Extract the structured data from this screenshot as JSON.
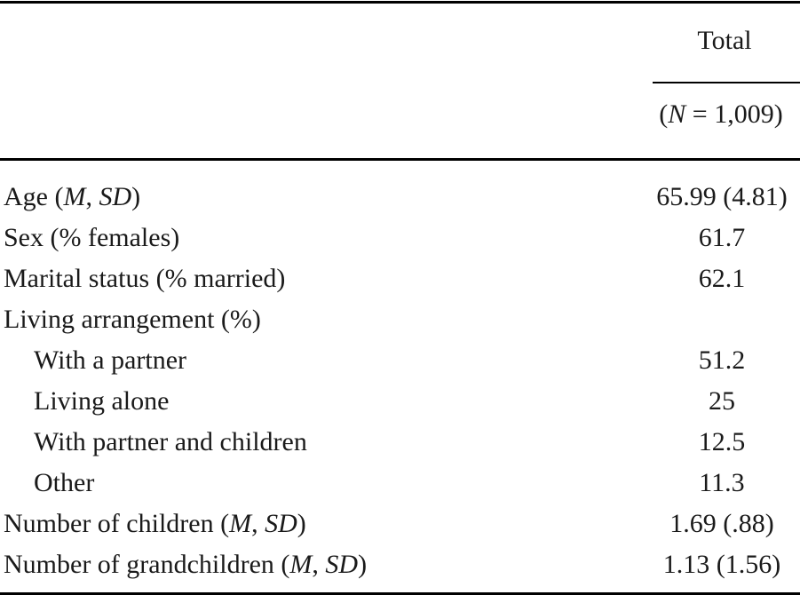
{
  "table": {
    "header": {
      "column_label": "Total",
      "column_sub": "(*N* = 1,009)"
    },
    "rows": [
      {
        "label": "Age (*M*, *SD*)",
        "value": "65.99 (4.81)",
        "indent": false
      },
      {
        "label": "Sex (% females)",
        "value": "61.7",
        "indent": false
      },
      {
        "label": "Marital status (% married)",
        "value": "62.1",
        "indent": false
      },
      {
        "label": "Living arrangement (%)",
        "value": "",
        "indent": false
      },
      {
        "label": "With a partner",
        "value": "51.2",
        "indent": true
      },
      {
        "label": "Living alone",
        "value": "25",
        "indent": true
      },
      {
        "label": "With partner and children",
        "value": "12.5",
        "indent": true
      },
      {
        "label": "Other",
        "value": "11.3",
        "indent": true
      },
      {
        "label": "Number of children (*M*, *SD*)",
        "value": "1.69 (.88)",
        "indent": false
      },
      {
        "label": "Number of grandchildren (*M*, *SD*)",
        "value": "1.13 (1.56)",
        "indent": false
      }
    ],
    "colors": {
      "text": "#1a1a1a",
      "rule": "#000000",
      "background": "#ffffff"
    }
  }
}
